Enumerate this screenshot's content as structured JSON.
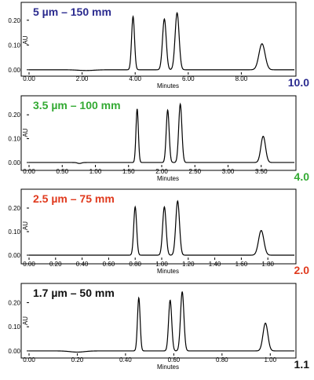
{
  "chart_data": [
    {
      "type": "line",
      "title": "5 µm – 150 mm",
      "title_color": "#2b2b8f",
      "xlabel": "Minutes",
      "ylabel": "AU",
      "xlim": [
        0,
        10.0
      ],
      "ylim": [
        -0.01,
        0.25
      ],
      "x_ticks": [
        "0.00",
        "2.00",
        "4.00",
        "6.00",
        "8.00"
      ],
      "x_tick_values": [
        0,
        2,
        4,
        6,
        8
      ],
      "y_ticks": [
        "0.00",
        "0.10",
        "0.20"
      ],
      "y_tick_values": [
        0,
        0.1,
        0.2
      ],
      "runtime_label": "10.0",
      "runtime_color": "#2b2b8f",
      "peaks": [
        {
          "x": 3.92,
          "y": 0.215,
          "width": 0.055
        },
        {
          "x": 5.1,
          "y": 0.205,
          "width": 0.07
        },
        {
          "x": 5.58,
          "y": 0.23,
          "width": 0.075
        },
        {
          "x": 8.78,
          "y": 0.105,
          "width": 0.115
        }
      ],
      "baseline_features": [
        {
          "x": 2.15,
          "y": -0.003,
          "width": 0.3
        }
      ]
    },
    {
      "type": "line",
      "title": "3.5 µm – 100 mm",
      "title_color": "#33aa33",
      "xlabel": "Minutes",
      "ylabel": "AU",
      "xlim": [
        0,
        4.0
      ],
      "ylim": [
        -0.01,
        0.26
      ],
      "x_ticks": [
        "0.00",
        "0.50",
        "1.00",
        "1.50",
        "2.00",
        "2.50",
        "3.00",
        "3.50"
      ],
      "x_tick_values": [
        0,
        0.5,
        1.0,
        1.5,
        2.0,
        2.5,
        3.0,
        3.5
      ],
      "y_ticks": [
        "0.00",
        "0.10",
        "0.20"
      ],
      "y_tick_values": [
        0,
        0.1,
        0.2
      ],
      "runtime_label": "4.0",
      "runtime_color": "#33aa33",
      "peaks": [
        {
          "x": 1.63,
          "y": 0.225,
          "width": 0.018
        },
        {
          "x": 2.09,
          "y": 0.22,
          "width": 0.022
        },
        {
          "x": 2.28,
          "y": 0.245,
          "width": 0.024
        },
        {
          "x": 3.53,
          "y": 0.11,
          "width": 0.035
        }
      ],
      "baseline_features": [
        {
          "x": 0.76,
          "y": -0.004,
          "width": 0.03
        }
      ]
    },
    {
      "type": "line",
      "title": "2.5 µm – 75 mm",
      "title_color": "#e03a1e",
      "xlabel": "Minutes",
      "ylabel": "AU",
      "xlim": [
        0,
        2.0
      ],
      "ylim": [
        -0.01,
        0.26
      ],
      "x_ticks": [
        "0.00",
        "0.20",
        "0.40",
        "0.60",
        "0.80",
        "1.00",
        "1.20",
        "1.40",
        "1.60",
        "1.80"
      ],
      "x_tick_values": [
        0,
        0.2,
        0.4,
        0.6,
        0.8,
        1.0,
        1.2,
        1.4,
        1.6,
        1.8
      ],
      "y_ticks": [
        "0.00",
        "0.10",
        "0.20"
      ],
      "y_tick_values": [
        0,
        0.1,
        0.2
      ],
      "runtime_label": "2.0",
      "runtime_color": "#e03a1e",
      "peaks": [
        {
          "x": 0.8,
          "y": 0.205,
          "width": 0.011
        },
        {
          "x": 1.02,
          "y": 0.205,
          "width": 0.013
        },
        {
          "x": 1.12,
          "y": 0.23,
          "width": 0.014
        },
        {
          "x": 1.75,
          "y": 0.105,
          "width": 0.02
        }
      ],
      "baseline_features": []
    },
    {
      "type": "line",
      "title": "1.7 µm – 50 mm",
      "title_color": "#111111",
      "xlabel": "Minutes",
      "ylabel": "AU",
      "xlim": [
        0,
        1.1
      ],
      "ylim": [
        -0.01,
        0.26
      ],
      "x_ticks": [
        "0.00",
        "0.20",
        "0.40",
        "0.60",
        "0.80",
        "1.00"
      ],
      "x_tick_values": [
        0,
        0.2,
        0.4,
        0.6,
        0.8,
        1.0
      ],
      "y_ticks": [
        "0.00",
        "0.10",
        "0.20"
      ],
      "y_tick_values": [
        0,
        0.1,
        0.2
      ],
      "runtime_label": "1.1",
      "runtime_color": "#111111",
      "peaks": [
        {
          "x": 0.455,
          "y": 0.22,
          "width": 0.0055
        },
        {
          "x": 0.585,
          "y": 0.21,
          "width": 0.0065
        },
        {
          "x": 0.635,
          "y": 0.245,
          "width": 0.007
        },
        {
          "x": 0.98,
          "y": 0.115,
          "width": 0.01
        }
      ],
      "baseline_features": [
        {
          "x": 0.2,
          "y": -0.005,
          "width": 0.03
        }
      ]
    }
  ]
}
